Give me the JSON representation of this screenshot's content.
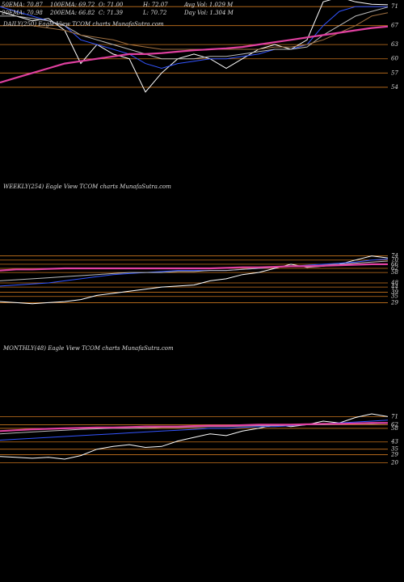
{
  "chart_data": [
    {
      "type": "line",
      "title": "DAILY(250) Eagle  View  TCOM charts MunafaSutra.com",
      "annotations": [
        "50EMA: 70.87",
        "100EMA: 69.72",
        "O: 71.00",
        "H: 72.07",
        "Avg Vol: 1.029  M",
        "20EMA: 70.98",
        "200EMA: 66.82",
        "C: 71.39",
        "L: 70.72",
        "Day Vol: 1.304  M"
      ],
      "ylim": [
        51.6,
        72.4
      ],
      "yticks": [
        71,
        67,
        63,
        60,
        57,
        54
      ],
      "grid": true,
      "series": [
        {
          "color": "#ffffff",
          "values": [
            70,
            69,
            68,
            68.5,
            66,
            59,
            63,
            61,
            60,
            53,
            57,
            60,
            61,
            60,
            58,
            60,
            62,
            63,
            62,
            64,
            72,
            73,
            72,
            71.5,
            71.4
          ]
        },
        {
          "color": "#3355ff",
          "values": [
            71,
            70,
            69,
            68,
            67,
            64,
            63,
            62,
            61,
            59,
            58,
            59,
            59.5,
            60,
            60,
            60.5,
            61,
            62,
            62,
            63,
            67,
            70,
            71,
            71,
            71
          ]
        },
        {
          "color": "#bbbbbb",
          "values": [
            69,
            69,
            68.5,
            68,
            67,
            65,
            64,
            63,
            62,
            61,
            60,
            60,
            60,
            60.5,
            60.5,
            61,
            61.5,
            62,
            62,
            62.5,
            65,
            67,
            69,
            70,
            70.9
          ]
        },
        {
          "color": "#a07040",
          "values": [
            67,
            67,
            67,
            66.5,
            66,
            65,
            64.5,
            64,
            63,
            62.5,
            62,
            62,
            62,
            62,
            62,
            62,
            62,
            62.5,
            62.5,
            63,
            64,
            65.5,
            67,
            69,
            69.7
          ]
        },
        {
          "color": "#e040a0",
          "values": [
            55,
            56,
            57,
            58,
            59,
            59.5,
            60,
            60.5,
            61,
            61,
            61.2,
            61.5,
            61.8,
            62,
            62.2,
            62.5,
            63,
            63.5,
            64,
            64.5,
            65,
            65.5,
            66,
            66.5,
            66.8
          ]
        }
      ]
    },
    {
      "type": "line",
      "title": "WEEKLY(254) Eagle  View  TCOM charts MunafaSutra.com",
      "ylim": [
        27,
        76
      ],
      "yticks": [
        74,
        70,
        66,
        62,
        58,
        48,
        44,
        39,
        35,
        29
      ],
      "grid": true,
      "series": [
        {
          "color": "#ffffff",
          "values": [
            30,
            29,
            28,
            29,
            30,
            32,
            36,
            38,
            40,
            42,
            44,
            45,
            46,
            50,
            52,
            56,
            58,
            62,
            66,
            63,
            64,
            66,
            70,
            74,
            72
          ]
        },
        {
          "color": "#3355ff",
          "values": [
            45,
            46,
            47,
            48,
            50,
            52,
            54,
            56,
            57,
            58,
            59,
            60,
            60,
            60,
            60,
            61,
            62,
            63,
            64,
            65,
            66,
            67,
            68,
            70,
            71
          ]
        },
        {
          "color": "#bbbbbb",
          "values": [
            50,
            51,
            52,
            53,
            54,
            55,
            56,
            57,
            58,
            58,
            58,
            59,
            59,
            60,
            60,
            61,
            62,
            63,
            64,
            64,
            65,
            66,
            67,
            68,
            69
          ]
        },
        {
          "color": "#e040a0",
          "values": [
            60,
            61,
            61,
            61.5,
            62,
            62,
            62,
            62,
            62,
            62,
            62,
            62,
            62,
            62,
            62.5,
            63,
            63,
            63.5,
            64,
            64,
            64.5,
            65,
            65.5,
            66,
            66
          ]
        }
      ]
    },
    {
      "type": "line",
      "title": "MONTHLY(48) Eagle  View  TCOM charts MunafaSutra.com",
      "ylim": [
        16,
        74
      ],
      "yticks": [
        71,
        62,
        58,
        43,
        35,
        29,
        20
      ],
      "grid": true,
      "series": [
        {
          "color": "#ffffff",
          "values": [
            27,
            26,
            25,
            26,
            24,
            28,
            35,
            38,
            40,
            37,
            38,
            44,
            48,
            52,
            50,
            55,
            58,
            62,
            60,
            62,
            66,
            64,
            70,
            74,
            71
          ]
        },
        {
          "color": "#3355ff",
          "values": [
            45,
            46,
            47,
            48,
            49,
            50,
            51,
            52,
            53,
            54,
            55,
            56,
            57,
            58,
            58,
            59,
            60,
            60,
            61,
            62,
            63,
            64,
            65,
            66,
            67
          ]
        },
        {
          "color": "#bbbbbb",
          "values": [
            52,
            53,
            54,
            55,
            56,
            57,
            57.5,
            58,
            58,
            58.5,
            59,
            59,
            59.5,
            60,
            60,
            60.5,
            61,
            61,
            61.5,
            62,
            62,
            62.5,
            63,
            63,
            63.5
          ]
        },
        {
          "color": "#e040a0",
          "values": [
            55,
            56,
            57,
            57.5,
            58,
            58.5,
            59,
            59,
            59.5,
            60,
            60,
            60,
            60.5,
            61,
            61,
            61.5,
            62,
            62,
            62,
            62.5,
            63,
            63,
            63.5,
            64,
            64
          ]
        }
      ]
    }
  ]
}
